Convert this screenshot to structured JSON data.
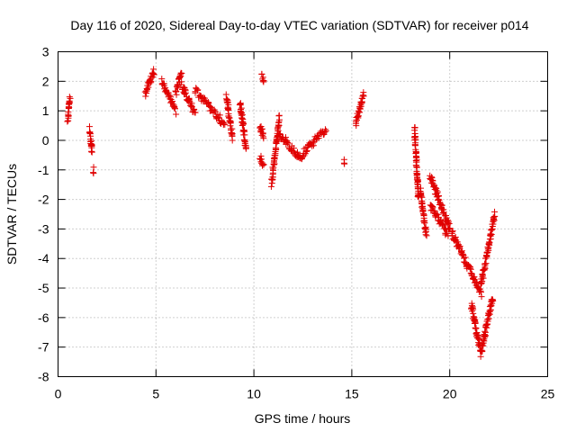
{
  "chart_data": {
    "type": "scatter",
    "title": "Day 116 of 2020, Sidereal Day-to-day VTEC variation (SDTVAR) for receiver p014",
    "xlabel": "GPS time / hours",
    "ylabel": "SDTVAR / TECUs",
    "xlim": [
      0,
      25
    ],
    "ylim": [
      -8,
      3
    ],
    "xticks": [
      0,
      5,
      10,
      15,
      20,
      25
    ],
    "xtick_labels": [
      "0",
      "5",
      "10",
      "15",
      "20",
      "25"
    ],
    "yticks": [
      3,
      2,
      1,
      0,
      -1,
      -2,
      -3,
      -4,
      -5,
      -6,
      -7,
      -8
    ],
    "ytick_labels": [
      "3",
      "2",
      "1",
      "0",
      "-1",
      "-2",
      "-3",
      "-4",
      "-5",
      "-6",
      "-7",
      "-8"
    ],
    "grid": true,
    "marker": "+",
    "series": [
      {
        "name": "SDTVAR",
        "color": "#e00000",
        "segments": [
          {
            "x": [
              0.5,
              0.6
            ],
            "y": [
              0.7,
              1.45
            ]
          },
          {
            "x": [
              1.6,
              1.75
            ],
            "y": [
              0.35,
              -0.4
            ]
          },
          {
            "x": [
              1.8,
              1.8
            ],
            "y": [
              -1.0,
              -1.0
            ]
          },
          {
            "x": [
              4.45,
              4.9
            ],
            "y": [
              1.6,
              2.35
            ]
          },
          {
            "x": [
              5.3,
              6.0
            ],
            "y": [
              2.0,
              1.0
            ]
          },
          {
            "x": [
              6.0,
              6.3
            ],
            "y": [
              1.6,
              2.3
            ]
          },
          {
            "x": [
              6.3,
              7.0
            ],
            "y": [
              1.9,
              0.9
            ]
          },
          {
            "x": [
              7.0,
              8.5
            ],
            "y": [
              1.7,
              0.55
            ]
          },
          {
            "x": [
              8.6,
              8.9
            ],
            "y": [
              1.5,
              0.1
            ]
          },
          {
            "x": [
              9.3,
              9.6
            ],
            "y": [
              1.3,
              -0.3
            ]
          },
          {
            "x": [
              10.3,
              10.5
            ],
            "y": [
              0.5,
              0.1
            ]
          },
          {
            "x": [
              10.4,
              10.5
            ],
            "y": [
              2.15,
              1.95
            ]
          },
          {
            "x": [
              10.3,
              10.5
            ],
            "y": [
              -0.55,
              -0.85
            ]
          },
          {
            "x": [
              10.9,
              11.3
            ],
            "y": [
              -1.45,
              0.75
            ]
          },
          {
            "x": [
              11.3,
              12.3
            ],
            "y": [
              0.25,
              -0.6
            ]
          },
          {
            "x": [
              12.3,
              13.7
            ],
            "y": [
              -0.6,
              0.4
            ]
          },
          {
            "x": [
              14.6,
              14.6
            ],
            "y": [
              -0.75,
              -0.75
            ]
          },
          {
            "x": [
              15.2,
              15.6
            ],
            "y": [
              0.55,
              1.6
            ]
          },
          {
            "x": [
              18.2,
              18.4
            ],
            "y": [
              0.4,
              -2.0
            ]
          },
          {
            "x": [
              18.5,
              18.8
            ],
            "y": [
              -1.7,
              -3.2
            ]
          },
          {
            "x": [
              19.0,
              20.0
            ],
            "y": [
              -1.2,
              -3.0
            ]
          },
          {
            "x": [
              19.0,
              19.9
            ],
            "y": [
              -2.2,
              -3.2
            ]
          },
          {
            "x": [
              20.1,
              21.6
            ],
            "y": [
              -3.1,
              -5.2
            ]
          },
          {
            "x": [
              21.6,
              22.3
            ],
            "y": [
              -4.9,
              -2.5
            ]
          },
          {
            "x": [
              21.1,
              21.6
            ],
            "y": [
              -5.6,
              -7.2
            ]
          },
          {
            "x": [
              21.6,
              22.2
            ],
            "y": [
              -7.2,
              -5.3
            ]
          }
        ]
      }
    ]
  }
}
